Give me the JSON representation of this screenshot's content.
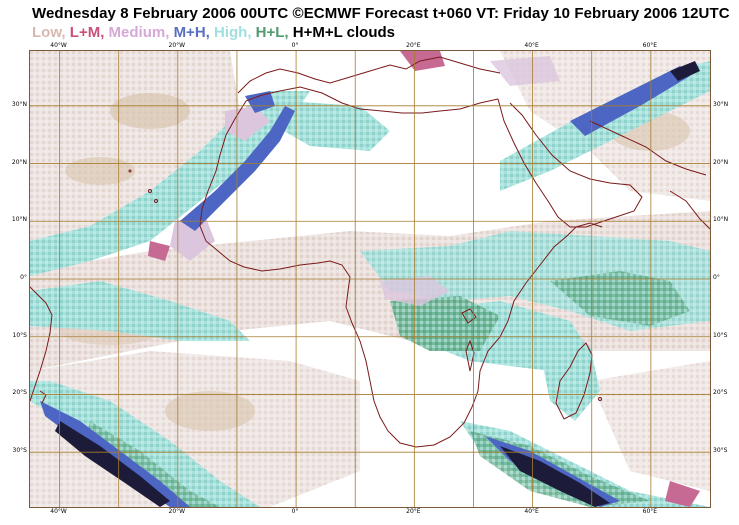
{
  "header": {
    "title": "Wednesday 8 February 2006 00UTC ©ECMWF Forecast t+060 VT: Friday 10 February 2006 12UTC",
    "legend": [
      {
        "text": "Low,",
        "color": "#d9b8ae"
      },
      {
        "text": "L+M,",
        "color": "#c8507a"
      },
      {
        "text": "Medium,",
        "color": "#d6a8d8"
      },
      {
        "text": "M+H,",
        "color": "#5a6fc0"
      },
      {
        "text": "High,",
        "color": "#9fe0df"
      },
      {
        "text": "H+L,",
        "color": "#4f9a6e"
      },
      {
        "text": "H+M+L clouds",
        "color": "#000000"
      }
    ]
  },
  "axes": {
    "top_labels": [
      "40°W",
      "20°W",
      "0°",
      "20°E",
      "40°E",
      "60°E"
    ],
    "bottom_labels": [
      "40°W",
      "20°W",
      "0°",
      "20°E",
      "40°E",
      "60°E"
    ],
    "left_labels": [
      "30°N",
      "20°N",
      "10°N",
      "0°",
      "10°S",
      "20°S",
      "30°S"
    ],
    "right_labels": [
      "30°N",
      "20°N",
      "10°N",
      "0°",
      "10°S",
      "20°S",
      "30°S"
    ]
  },
  "colors": {
    "grid": "#a67c2e",
    "coast": "#7a1a1a",
    "low": "#e6d7d2",
    "low_warm": "#d9c4ae",
    "medium": "#dcc6de",
    "high": "#a7e3e1",
    "mh": "#4d66c4",
    "hl": "#5fae8a",
    "lm": "#c76a93",
    "hml": "#1c1c3a"
  }
}
